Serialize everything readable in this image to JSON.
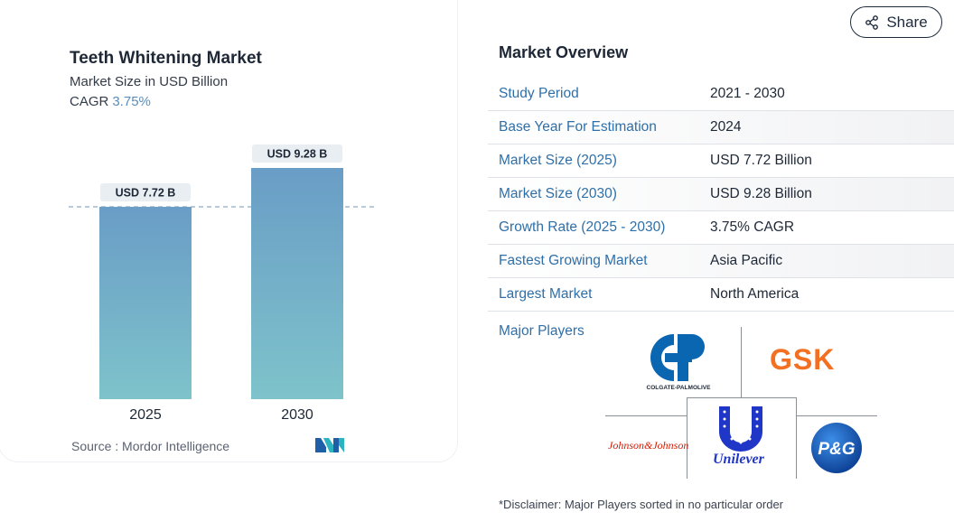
{
  "chart": {
    "title": "Teeth Whitening Market",
    "subtitle": "Market Size in USD Billion",
    "cagr_label": "CAGR",
    "cagr_value": "3.75%",
    "source": "Source :  Mordor Intelligence"
  },
  "chart_data": {
    "type": "bar",
    "title": "Teeth Whitening Market",
    "subtitle": "Market Size in USD Billion",
    "categories": [
      "2025",
      "2030"
    ],
    "values": [
      7.72,
      9.28
    ],
    "data_labels": [
      "USD 7.72 B",
      "USD 9.28 B"
    ],
    "ylim": [
      0,
      9.28
    ],
    "grid": false,
    "reference_line_value": 7.72,
    "colors": {
      "bar_top": "#6a9dc6",
      "bar_bottom": "#7ec3cb",
      "label_bg": "#e9eef2",
      "dashed_line": "#9fb8cf"
    }
  },
  "share": {
    "label": "Share",
    "icon": "share-icon"
  },
  "overview": {
    "title": "Market Overview",
    "rows": [
      {
        "key": "Study Period",
        "value": "2021 - 2030"
      },
      {
        "key": "Base Year For Estimation",
        "value": "2024"
      },
      {
        "key": "Market Size (2025)",
        "value": "USD 7.72 Billion"
      },
      {
        "key": "Market Size (2030)",
        "value": "USD 9.28 Billion"
      },
      {
        "key": "Growth Rate (2025 - 2030)",
        "value": "3.75% CAGR"
      },
      {
        "key": "Fastest Growing Market",
        "value": "Asia Pacific"
      },
      {
        "key": "Largest Market",
        "value": "North America"
      }
    ],
    "players_label": "Major Players",
    "players": [
      "COLGATE-PALMOLIVE",
      "GSK",
      "Johnson&Johnson",
      "Unilever",
      "P&G"
    ],
    "disclaimer": "*Disclaimer: Major Players sorted in no particular order"
  },
  "colors": {
    "accent_blue": "#2f6fa8",
    "gsk_orange": "#f36f21",
    "jj_red": "#d51900",
    "pg_blue": "#0a3d91",
    "unilever_blue": "#1f36c7",
    "colgate_blue": "#0b66b2"
  }
}
